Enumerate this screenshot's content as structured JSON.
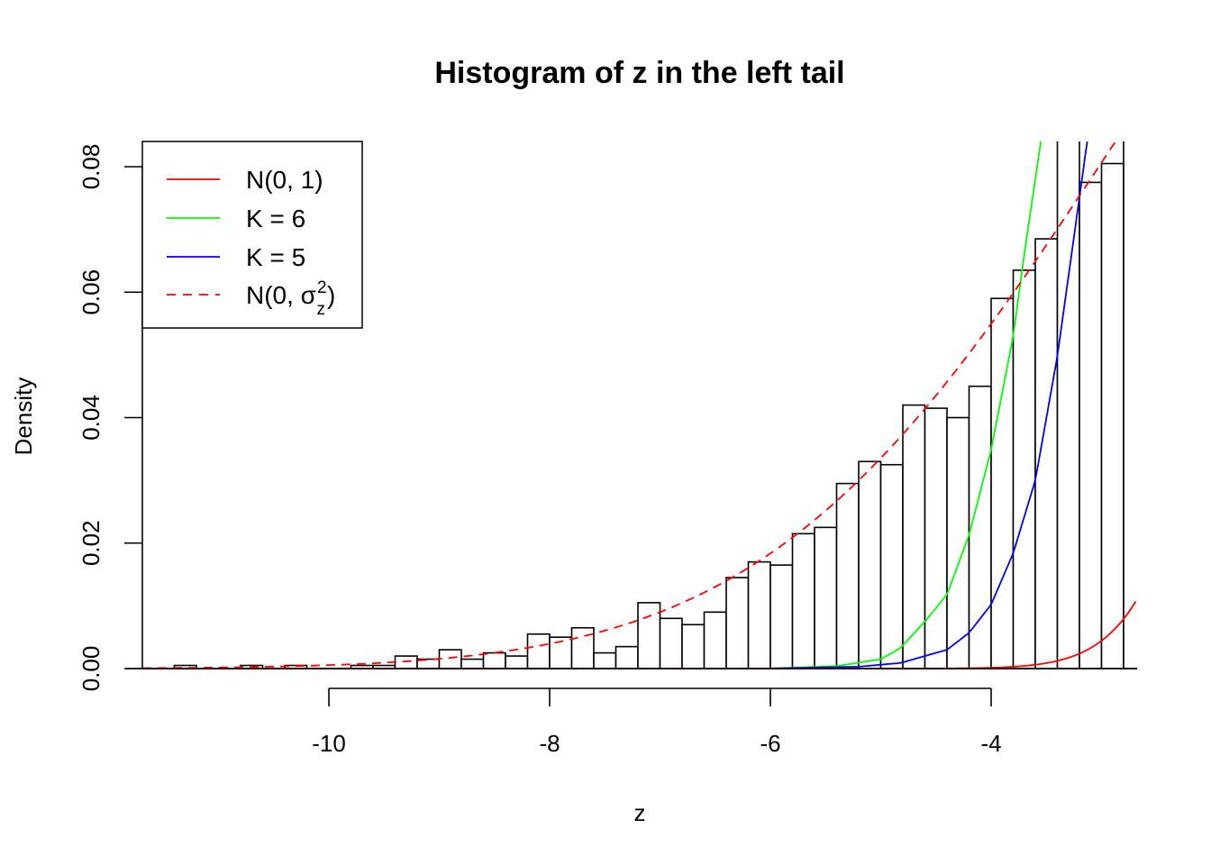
{
  "chart_data": {
    "type": "bar",
    "title": "Histogram of z in the left tail",
    "xlabel": "z",
    "ylabel": "Density",
    "xlim": [
      -11.69,
      -2.68
    ],
    "ylim": [
      0,
      0.084
    ],
    "x_ticks": [
      -10,
      -8,
      -6,
      -4
    ],
    "x_tick_labels": [
      "-10",
      "-8",
      "-6",
      "-4"
    ],
    "y_ticks": [
      0,
      0.02,
      0.04,
      0.06,
      0.08
    ],
    "y_tick_labels": [
      "0.00",
      "0.02",
      "0.04",
      "0.06",
      "0.08"
    ],
    "bin_width": 0.2,
    "bin_left_edges": [
      -11.4,
      -11.2,
      -11.0,
      -10.8,
      -10.6,
      -10.4,
      -10.2,
      -10.0,
      -9.8,
      -9.6,
      -9.4,
      -9.2,
      -9.0,
      -8.8,
      -8.6,
      -8.4,
      -8.2,
      -8.0,
      -7.8,
      -7.6,
      -7.4,
      -7.2,
      -7.0,
      -6.8,
      -6.6,
      -6.4,
      -6.2,
      -6.0,
      -5.8,
      -5.6,
      -5.4,
      -5.2,
      -5.0,
      -4.8,
      -4.6,
      -4.4,
      -4.2,
      -4.0,
      -3.8,
      -3.6,
      -3.4,
      -3.2,
      -3.0,
      -2.8
    ],
    "densities": [
      0.0005,
      0,
      0,
      0.0005,
      0,
      0.0005,
      0,
      0,
      0.0005,
      0.0005,
      0.002,
      0.0015,
      0.003,
      0.0015,
      0.0025,
      0.002,
      0.0055,
      0.005,
      0.0065,
      0.0025,
      0.0035,
      0.0105,
      0.008,
      0.007,
      0.009,
      0.0145,
      0.017,
      0.0165,
      0.0215,
      0.0225,
      0.0295,
      0.033,
      0.0325,
      0.042,
      0.0415,
      0.04,
      0.045,
      0.059,
      0.0635,
      0.0685,
      0.09,
      0.0775,
      0.0805,
      0.09
    ],
    "series": [
      {
        "name": "N(0, 1)",
        "color": "#ff0000",
        "style": "solid",
        "kind": "normal",
        "sd": 1
      },
      {
        "name": "K = 6",
        "color": "#00ff00",
        "style": "solid",
        "kind": "points",
        "x": [
          -11.69,
          -6.0,
          -5.4,
          -5.0,
          -4.82,
          -4.6,
          -4.4,
          -4.2,
          -4.0,
          -3.8,
          -3.7,
          -3.55
        ],
        "y": [
          0,
          2e-05,
          0.0004,
          0.0015,
          0.0033,
          0.0075,
          0.0118,
          0.0213,
          0.0349,
          0.053,
          0.066,
          0.084
        ]
      },
      {
        "name": "K = 5",
        "color": "#0000ff",
        "style": "solid",
        "kind": "points",
        "x": [
          -11.69,
          -6.0,
          -5.2,
          -4.82,
          -4.4,
          -4.2,
          -4.0,
          -3.8,
          -3.6,
          -3.4,
          -3.2,
          -3.13
        ],
        "y": [
          0,
          2e-05,
          0.0003,
          0.0009,
          0.003,
          0.0057,
          0.0102,
          0.0184,
          0.03,
          0.0498,
          0.0751,
          0.084
        ]
      },
      {
        "name": "N(0, σz²)",
        "color": "#ff0000",
        "style": "dashed",
        "kind": "normal",
        "sd": 3.02
      }
    ],
    "legend": {
      "position": "top-left",
      "entries": [
        {
          "label": "N(0, 1)"
        },
        {
          "label": "K = 6"
        },
        {
          "label": "K = 5"
        },
        {
          "label": "N(0, σz²)",
          "base": "N(0, σ",
          "sup": "2",
          "sub": "z",
          "close": ")"
        }
      ]
    }
  }
}
